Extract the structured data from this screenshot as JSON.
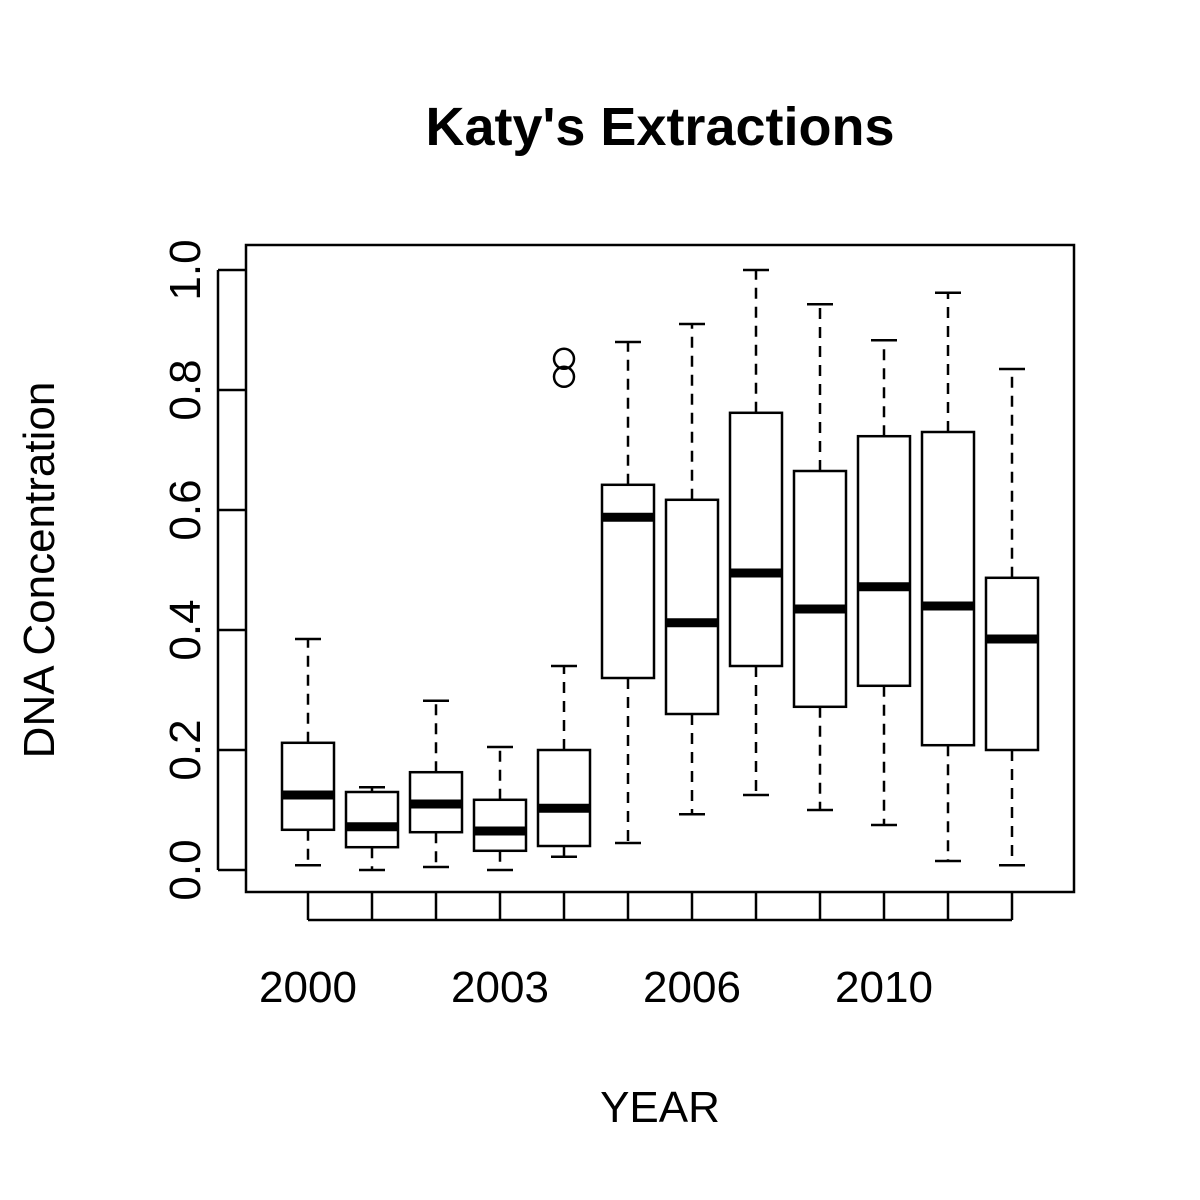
{
  "chart_data": {
    "type": "boxplot",
    "title": "Katy's Extractions",
    "xlabel": "YEAR",
    "ylabel": "DNA Concentration",
    "ylim": [
      0,
      1.0
    ],
    "yticks": [
      "0.0",
      "0.2",
      "0.4",
      "0.6",
      "0.8",
      "1.0"
    ],
    "ytick_values": [
      0,
      0.2,
      0.4,
      0.6,
      0.8,
      1.0
    ],
    "xtick_labels": [
      {
        "index": 0,
        "label": "2000"
      },
      {
        "index": 3,
        "label": "2003"
      },
      {
        "index": 6,
        "label": "2006"
      },
      {
        "index": 9,
        "label": "2010"
      }
    ],
    "grid": false,
    "boxes": [
      {
        "min": 0.008,
        "q1": 0.067,
        "median": 0.125,
        "q3": 0.212,
        "max": 0.385,
        "outliers": []
      },
      {
        "min": 0.0,
        "q1": 0.038,
        "median": 0.072,
        "q3": 0.13,
        "max": 0.138,
        "outliers": []
      },
      {
        "min": 0.005,
        "q1": 0.063,
        "median": 0.11,
        "q3": 0.163,
        "max": 0.282,
        "outliers": []
      },
      {
        "min": 0.0,
        "q1": 0.032,
        "median": 0.065,
        "q3": 0.117,
        "max": 0.205,
        "outliers": []
      },
      {
        "min": 0.022,
        "q1": 0.04,
        "median": 0.103,
        "q3": 0.2,
        "max": 0.34,
        "outliers": [
          0.822,
          0.852
        ]
      },
      {
        "min": 0.045,
        "q1": 0.32,
        "median": 0.588,
        "q3": 0.642,
        "max": 0.88,
        "outliers": []
      },
      {
        "min": 0.093,
        "q1": 0.26,
        "median": 0.412,
        "q3": 0.617,
        "max": 0.91,
        "outliers": []
      },
      {
        "min": 0.125,
        "q1": 0.34,
        "median": 0.495,
        "q3": 0.762,
        "max": 1.0,
        "outliers": []
      },
      {
        "min": 0.1,
        "q1": 0.272,
        "median": 0.435,
        "q3": 0.665,
        "max": 0.943,
        "outliers": []
      },
      {
        "min": 0.075,
        "q1": 0.307,
        "median": 0.472,
        "q3": 0.723,
        "max": 0.883,
        "outliers": []
      },
      {
        "min": 0.015,
        "q1": 0.208,
        "median": 0.44,
        "q3": 0.73,
        "max": 0.962,
        "outliers": []
      },
      {
        "min": 0.008,
        "q1": 0.2,
        "median": 0.385,
        "q3": 0.487,
        "max": 0.835,
        "outliers": []
      }
    ]
  }
}
